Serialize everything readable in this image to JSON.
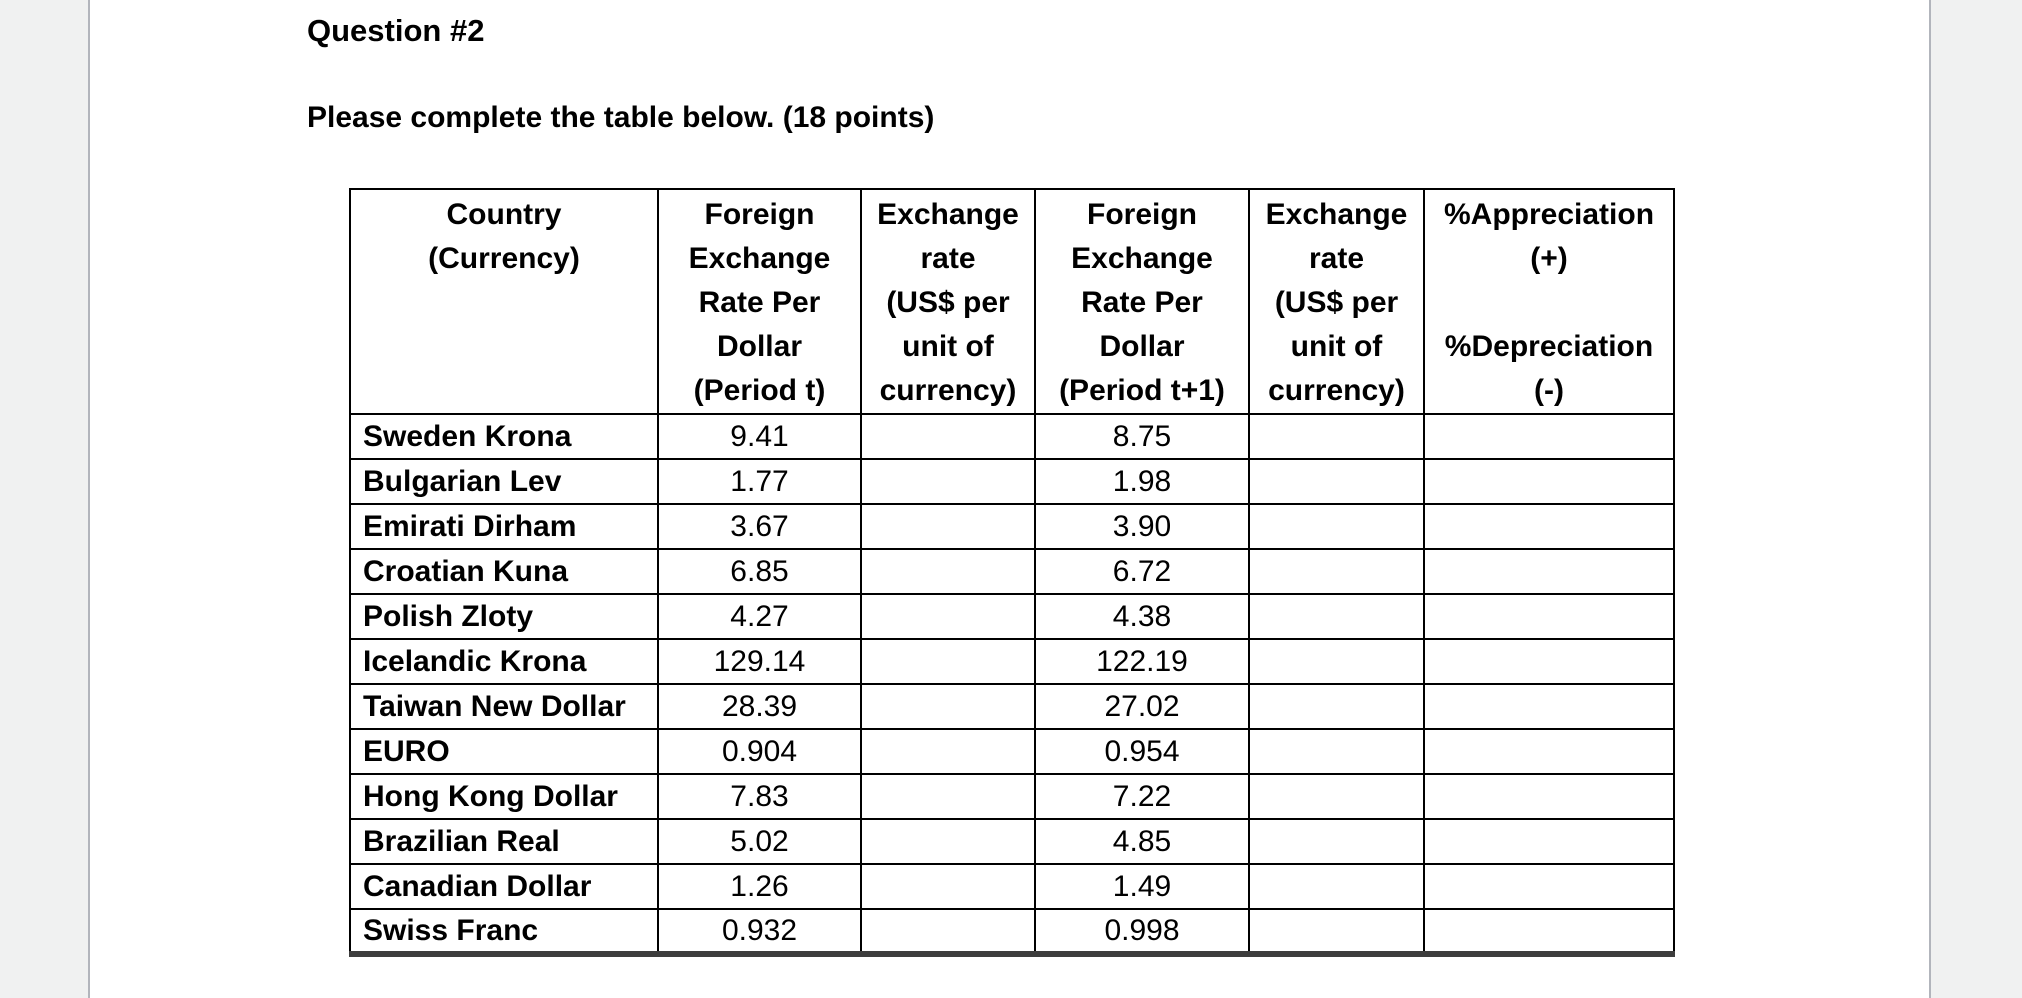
{
  "document": {
    "title": "Question #2",
    "instruction": "Please complete the table below. (18 points)"
  },
  "table": {
    "columns": [
      {
        "label": "Country\n(Currency)"
      },
      {
        "label": "Foreign\nExchange\nRate Per\nDollar\n(Period t)"
      },
      {
        "label": "Exchange\nrate\n(US$ per\nunit of\ncurrency)"
      },
      {
        "label": "Foreign\nExchange\nRate Per\nDollar\n(Period t+1)"
      },
      {
        "label": "Exchange\nrate\n(US$ per\nunit of\ncurrency)"
      },
      {
        "label": "%Appreciation\n(+)\n\n%Depreciation\n(-)"
      }
    ],
    "rows": [
      {
        "country": "Sweden Krona",
        "rate_period_t": "9.41",
        "exchange_rate_t": "",
        "rate_period_t1": "8.75",
        "exchange_rate_t1": "",
        "appreciation_depreciation": ""
      },
      {
        "country": "Bulgarian Lev",
        "rate_period_t": "1.77",
        "exchange_rate_t": "",
        "rate_period_t1": "1.98",
        "exchange_rate_t1": "",
        "appreciation_depreciation": ""
      },
      {
        "country": "Emirati Dirham",
        "rate_period_t": "3.67",
        "exchange_rate_t": "",
        "rate_period_t1": "3.90",
        "exchange_rate_t1": "",
        "appreciation_depreciation": ""
      },
      {
        "country": "Croatian Kuna",
        "rate_period_t": "6.85",
        "exchange_rate_t": "",
        "rate_period_t1": "6.72",
        "exchange_rate_t1": "",
        "appreciation_depreciation": ""
      },
      {
        "country": "Polish Zloty",
        "rate_period_t": "4.27",
        "exchange_rate_t": "",
        "rate_period_t1": "4.38",
        "exchange_rate_t1": "",
        "appreciation_depreciation": ""
      },
      {
        "country": "Icelandic Krona",
        "rate_period_t": "129.14",
        "exchange_rate_t": "",
        "rate_period_t1": "122.19",
        "exchange_rate_t1": "",
        "appreciation_depreciation": ""
      },
      {
        "country": "Taiwan New Dollar",
        "rate_period_t": "28.39",
        "exchange_rate_t": "",
        "rate_period_t1": "27.02",
        "exchange_rate_t1": "",
        "appreciation_depreciation": ""
      },
      {
        "country": "EURO",
        "rate_period_t": "0.904",
        "exchange_rate_t": "",
        "rate_period_t1": "0.954",
        "exchange_rate_t1": "",
        "appreciation_depreciation": ""
      },
      {
        "country": "Hong Kong Dollar",
        "rate_period_t": "7.83",
        "exchange_rate_t": "",
        "rate_period_t1": "7.22",
        "exchange_rate_t1": "",
        "appreciation_depreciation": ""
      },
      {
        "country": "Brazilian Real",
        "rate_period_t": "5.02",
        "exchange_rate_t": "",
        "rate_period_t1": "4.85",
        "exchange_rate_t1": "",
        "appreciation_depreciation": ""
      },
      {
        "country": "Canadian Dollar",
        "rate_period_t": "1.26",
        "exchange_rate_t": "",
        "rate_period_t1": "1.49",
        "exchange_rate_t1": "",
        "appreciation_depreciation": ""
      },
      {
        "country": "Swiss Franc",
        "rate_period_t": "0.932",
        "exchange_rate_t": "",
        "rate_period_t1": "0.998",
        "exchange_rate_t1": "",
        "appreciation_depreciation": ""
      }
    ]
  }
}
